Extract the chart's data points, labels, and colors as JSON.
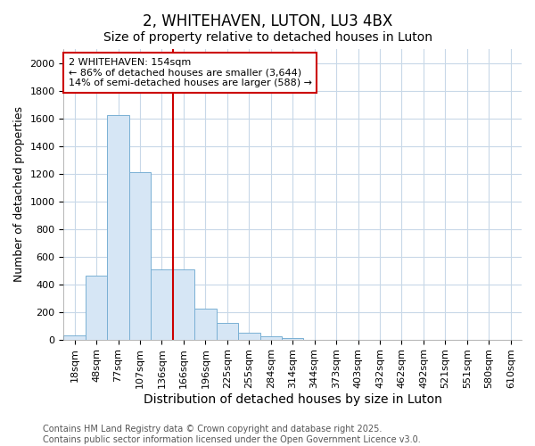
{
  "title": "2, WHITEHAVEN, LUTON, LU3 4BX",
  "subtitle": "Size of property relative to detached houses in Luton",
  "xlabel": "Distribution of detached houses by size in Luton",
  "ylabel": "Number of detached properties",
  "bar_labels": [
    "18sqm",
    "48sqm",
    "77sqm",
    "107sqm",
    "136sqm",
    "166sqm",
    "196sqm",
    "225sqm",
    "255sqm",
    "284sqm",
    "314sqm",
    "344sqm",
    "373sqm",
    "403sqm",
    "432sqm",
    "462sqm",
    "492sqm",
    "521sqm",
    "551sqm",
    "580sqm",
    "610sqm"
  ],
  "bar_heights": [
    30,
    460,
    1620,
    1210,
    510,
    510,
    220,
    120,
    50,
    20,
    10,
    0,
    0,
    0,
    0,
    0,
    0,
    0,
    0,
    0,
    0
  ],
  "bar_color": "#d6e6f5",
  "bar_edge_color": "#7ab0d4",
  "red_line_index": 5,
  "annotation_title": "2 WHITEHAVEN: 154sqm",
  "annotation_line1": "← 86% of detached houses are smaller (3,644)",
  "annotation_line2": "14% of semi-detached houses are larger (588) →",
  "annotation_box_color": "#ffffff",
  "annotation_box_edge": "#cc0000",
  "red_line_color": "#cc0000",
  "ylim": [
    0,
    2100
  ],
  "yticks": [
    0,
    200,
    400,
    600,
    800,
    1000,
    1200,
    1400,
    1600,
    1800,
    2000
  ],
  "footnote1": "Contains HM Land Registry data © Crown copyright and database right 2025.",
  "footnote2": "Contains public sector information licensed under the Open Government Licence v3.0.",
  "title_fontsize": 12,
  "subtitle_fontsize": 10,
  "xlabel_fontsize": 10,
  "ylabel_fontsize": 9,
  "tick_fontsize": 8,
  "annot_fontsize": 8,
  "footnote_fontsize": 7,
  "background_color": "#ffffff",
  "grid_color": "#c8d8e8"
}
